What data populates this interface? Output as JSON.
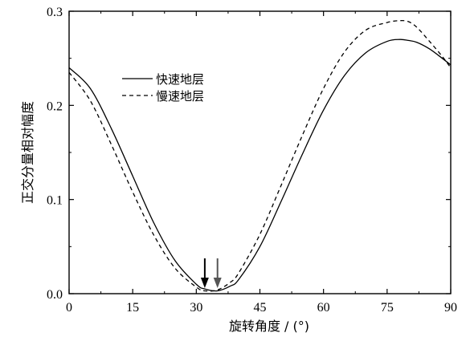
{
  "chart_data": {
    "type": "line",
    "xlabel": "旋转角度 / (°)",
    "ylabel": "正交分量相对幅度",
    "xlim": [
      0,
      90
    ],
    "ylim": [
      0,
      0.3
    ],
    "xticks": [
      0,
      15,
      30,
      45,
      60,
      75,
      90
    ],
    "yticks": [
      0.0,
      0.1,
      0.2,
      0.3
    ],
    "xtick_labels": [
      "0",
      "15",
      "30",
      "45",
      "60",
      "75",
      "90"
    ],
    "ytick_labels": [
      "0.0",
      "0.1",
      "0.2",
      "0.3"
    ],
    "grid": false,
    "legend_position": "upper-left",
    "series": [
      {
        "name": "快速地层",
        "style": "solid",
        "color": "#000000",
        "x": [
          0,
          5,
          10,
          15,
          20,
          25,
          30,
          32,
          35,
          38,
          40,
          45,
          50,
          55,
          60,
          65,
          70,
          75,
          78,
          80,
          82,
          85,
          88,
          90
        ],
        "y": [
          0.24,
          0.218,
          0.175,
          0.125,
          0.075,
          0.035,
          0.01,
          0.005,
          0.003,
          0.008,
          0.015,
          0.05,
          0.098,
          0.148,
          0.195,
          0.232,
          0.256,
          0.268,
          0.27,
          0.269,
          0.267,
          0.26,
          0.25,
          0.243
        ]
      },
      {
        "name": "慢速地层",
        "style": "dashed",
        "color": "#000000",
        "x": [
          0,
          5,
          10,
          15,
          20,
          25,
          30,
          32,
          35,
          38,
          40,
          45,
          50,
          55,
          60,
          65,
          70,
          75,
          78,
          80,
          82,
          85,
          88,
          90
        ],
        "y": [
          0.235,
          0.205,
          0.158,
          0.108,
          0.062,
          0.027,
          0.007,
          0.003,
          0.004,
          0.012,
          0.022,
          0.063,
          0.115,
          0.168,
          0.218,
          0.257,
          0.28,
          0.288,
          0.29,
          0.289,
          0.283,
          0.268,
          0.252,
          0.24
        ]
      }
    ],
    "arrows": [
      {
        "x": 32,
        "color": "#000000"
      },
      {
        "x": 35,
        "color": "#555555"
      }
    ]
  }
}
